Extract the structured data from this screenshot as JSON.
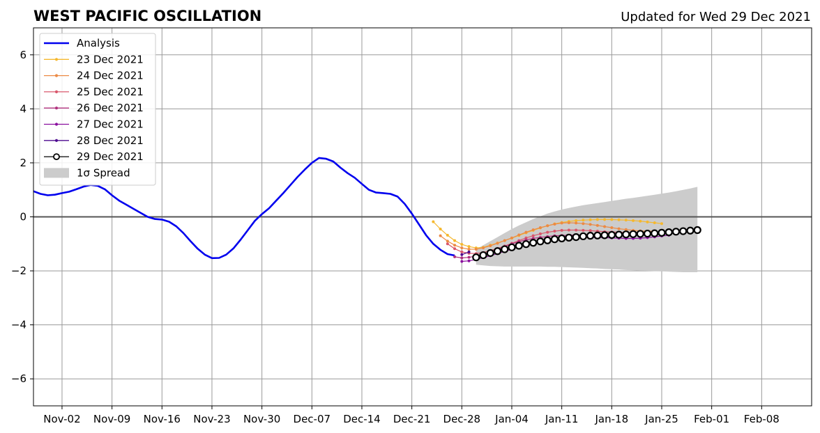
{
  "chart_data": {
    "type": "line",
    "title": "WEST PACIFIC OSCILLATION",
    "subtitle": "Updated for Wed 29 Dec 2021",
    "xlabel": "",
    "ylabel": "",
    "xlim": [
      "2021-10-29",
      "2022-02-15"
    ],
    "ylim": [
      -7,
      7
    ],
    "grid": true,
    "legend_position": "top-left",
    "x_ticks": [
      "Nov-02",
      "Nov-09",
      "Nov-16",
      "Nov-23",
      "Nov-30",
      "Dec-07",
      "Dec-14",
      "Dec-21",
      "Dec-28",
      "Jan-04",
      "Jan-11",
      "Jan-18",
      "Jan-25",
      "Feb-01",
      "Feb-08"
    ],
    "y_ticks": [
      "−6",
      "−4",
      "−2",
      "0",
      "2",
      "4",
      "6"
    ],
    "y_tick_values": [
      -6,
      -4,
      -2,
      0,
      2,
      4,
      6
    ],
    "analysis": {
      "name": "Analysis",
      "color": "#0000ee",
      "start_date": "2021-10-29",
      "values": [
        0.95,
        0.85,
        0.8,
        0.82,
        0.88,
        0.93,
        1.02,
        1.12,
        1.18,
        1.15,
        1.02,
        0.8,
        0.6,
        0.45,
        0.3,
        0.15,
        0.0,
        -0.08,
        -0.1,
        -0.18,
        -0.35,
        -0.6,
        -0.9,
        -1.18,
        -1.4,
        -1.53,
        -1.52,
        -1.4,
        -1.17,
        -0.85,
        -0.5,
        -0.15,
        0.1,
        0.32,
        0.6,
        0.88,
        1.18,
        1.48,
        1.75,
        2.0,
        2.18,
        2.15,
        2.05,
        1.82,
        1.62,
        1.45,
        1.22,
        1.0,
        0.9,
        0.88,
        0.85,
        0.75,
        0.48,
        0.12,
        -0.28,
        -0.68,
        -1.0,
        -1.22,
        -1.38,
        -1.43
      ]
    },
    "forecasts": [
      {
        "name": "23 Dec 2021",
        "color": "#f5b82e",
        "start_date": "2021-12-24",
        "values": [
          -0.18,
          -0.45,
          -0.68,
          -0.88,
          -1.02,
          -1.1,
          -1.15,
          -1.13,
          -1.05,
          -0.97,
          -0.88,
          -0.79,
          -0.69,
          -0.59,
          -0.5,
          -0.41,
          -0.33,
          -0.26,
          -0.21,
          -0.17,
          -0.14,
          -0.12,
          -0.11,
          -0.1,
          -0.1,
          -0.1,
          -0.11,
          -0.12,
          -0.14,
          -0.16,
          -0.19,
          -0.22,
          -0.25
        ]
      },
      {
        "name": "24 Dec 2021",
        "color": "#ec8a44",
        "start_date": "2021-12-25",
        "values": [
          -0.7,
          -0.9,
          -1.05,
          -1.15,
          -1.2,
          -1.2,
          -1.15,
          -1.07,
          -0.98,
          -0.88,
          -0.78,
          -0.67,
          -0.57,
          -0.48,
          -0.4,
          -0.33,
          -0.27,
          -0.23,
          -0.22,
          -0.23,
          -0.25,
          -0.28,
          -0.32,
          -0.36,
          -0.4,
          -0.44,
          -0.47,
          -0.5,
          -0.52,
          -0.53,
          -0.53
        ]
      },
      {
        "name": "25 Dec 2021",
        "color": "#d9576b",
        "start_date": "2021-12-26",
        "values": [
          -1.0,
          -1.18,
          -1.3,
          -1.35,
          -1.36,
          -1.32,
          -1.25,
          -1.17,
          -1.08,
          -0.98,
          -0.88,
          -0.78,
          -0.7,
          -0.63,
          -0.57,
          -0.53,
          -0.5,
          -0.49,
          -0.49,
          -0.5,
          -0.51,
          -0.53,
          -0.55,
          -0.56,
          -0.57,
          -0.58,
          -0.58,
          -0.58,
          -0.57,
          -0.56
        ]
      },
      {
        "name": "26 Dec 2021",
        "color": "#b0307e",
        "start_date": "2021-12-27",
        "values": [
          -1.48,
          -1.52,
          -1.5,
          -1.45,
          -1.38,
          -1.3,
          -1.2,
          -1.1,
          -1.0,
          -0.92,
          -0.85,
          -0.8,
          -0.76,
          -0.73,
          -0.7,
          -0.69,
          -0.68,
          -0.67,
          -0.67,
          -0.67,
          -0.67,
          -0.67,
          -0.67,
          -0.67,
          -0.66,
          -0.65,
          -0.63,
          -0.61,
          -0.58
        ]
      },
      {
        "name": "27 Dec 2021",
        "color": "#8a0f9e",
        "start_date": "2021-12-28",
        "values": [
          -1.65,
          -1.63,
          -1.58,
          -1.51,
          -1.44,
          -1.36,
          -1.28,
          -1.2,
          -1.12,
          -1.05,
          -0.98,
          -0.93,
          -0.88,
          -0.84,
          -0.81,
          -0.78,
          -0.77,
          -0.76,
          -0.76,
          -0.76,
          -0.77,
          -0.78,
          -0.79,
          -0.8,
          -0.8,
          -0.79,
          -0.77,
          -0.74,
          -0.71,
          -0.68
        ]
      },
      {
        "name": "28 Dec 2021",
        "color": "#4d0a8f",
        "start_date": "2021-12-28",
        "values": [
          -1.4,
          -1.3
        ]
      },
      {
        "name": "29 Dec 2021",
        "color": "#000000",
        "start_date": "2021-12-30",
        "values": [
          -1.5,
          -1.42,
          -1.34,
          -1.27,
          -1.2,
          -1.13,
          -1.07,
          -1.01,
          -0.96,
          -0.91,
          -0.87,
          -0.83,
          -0.8,
          -0.77,
          -0.75,
          -0.72,
          -0.7,
          -0.69,
          -0.68,
          -0.67,
          -0.66,
          -0.65,
          -0.64,
          -0.63,
          -0.62,
          -0.61,
          -0.59,
          -0.57,
          -0.55,
          -0.53,
          -0.51,
          -0.49
        ]
      }
    ],
    "spread": {
      "name": "1σ Spread",
      "color": "#cccccc",
      "start_date": "2021-12-30",
      "upper": [
        -1.2,
        -1.05,
        -0.9,
        -0.75,
        -0.6,
        -0.45,
        -0.32,
        -0.2,
        -0.08,
        0.02,
        0.12,
        0.2,
        0.27,
        0.33,
        0.38,
        0.43,
        0.47,
        0.51,
        0.55,
        0.59,
        0.63,
        0.67,
        0.7,
        0.74,
        0.78,
        0.82,
        0.86,
        0.9,
        0.95,
        1.0,
        1.05,
        1.11
      ],
      "lower": [
        -1.77,
        -1.8,
        -1.82,
        -1.83,
        -1.84,
        -1.84,
        -1.84,
        -1.84,
        -1.84,
        -1.84,
        -1.85,
        -1.85,
        -1.86,
        -1.87,
        -1.88,
        -1.89,
        -1.9,
        -1.91,
        -1.93,
        -1.94,
        -1.95,
        -1.97,
        -1.98,
        -1.99,
        -2.0,
        -2.01,
        -2.02,
        -2.03,
        -2.04,
        -2.05,
        -2.05,
        -2.05
      ]
    },
    "legend": [
      "Analysis",
      "23 Dec 2021",
      "24 Dec 2021",
      "25 Dec 2021",
      "26 Dec 2021",
      "27 Dec 2021",
      "28 Dec 2021",
      "29 Dec 2021",
      "1σ Spread"
    ]
  }
}
